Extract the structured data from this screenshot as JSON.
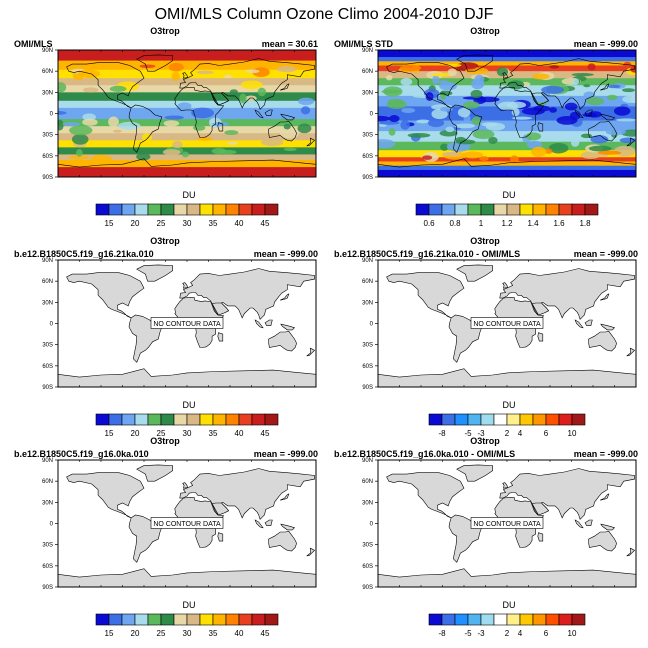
{
  "figure": {
    "title": "OMI/MLS Column Ozone Climo 2004-2010 DJF"
  },
  "lat_ticks": [
    "90N",
    "60N",
    "30N",
    "0",
    "30S",
    "60S",
    "90S"
  ],
  "panels": [
    {
      "id": "obs",
      "title": "O3trop",
      "left_label": "OMI/MLS",
      "right_label": "mean =  30.61",
      "units": "DU",
      "has_data": true,
      "nodata_label": "",
      "colorbar": "abs"
    },
    {
      "id": "obs-std",
      "title": "O3trop",
      "left_label": "OMI/MLS STD",
      "right_label": "mean = -999.00",
      "units": "DU",
      "has_data": true,
      "nodata_label": "",
      "colorbar": "std"
    },
    {
      "id": "model1",
      "title": "O3trop",
      "left_label": "b.e12.B1850C5.f19_g16.21ka.010",
      "right_label": "mean = -999.00",
      "units": "DU",
      "has_data": false,
      "nodata_label": "NO CONTOUR DATA",
      "colorbar": "abs"
    },
    {
      "id": "model1-diff",
      "title": "O3trop",
      "left_label": "b.e12.B1850C5.f19_g16.21ka.010 - OMI/MLS",
      "right_label": "mean = -999.00",
      "units": "DU",
      "has_data": false,
      "nodata_label": "NO CONTOUR DATA",
      "colorbar": "diff"
    },
    {
      "id": "model2",
      "title": "O3trop",
      "left_label": "b.e12.B1850C5.f19_g16.0ka.010",
      "right_label": "mean = -999.00",
      "units": "DU",
      "has_data": false,
      "nodata_label": "NO CONTOUR DATA",
      "colorbar": "abs"
    },
    {
      "id": "model2-diff",
      "title": "O3trop",
      "left_label": "b.e12.B1850C5.f19_g16.0ka.010 - OMI/MLS",
      "right_label": "mean = -999.00",
      "units": "DU",
      "has_data": false,
      "nodata_label": "NO CONTOUR DATA",
      "colorbar": "diff"
    }
  ],
  "colorbars": {
    "abs": {
      "colors": [
        "#0a0ad2",
        "#3c6fe6",
        "#6ea6f0",
        "#a8dcec",
        "#5cb85c",
        "#2e8b4a",
        "#e8d8a8",
        "#d8b884",
        "#ffe000",
        "#ffb400",
        "#ff8200",
        "#e8401e",
        "#c81e1e",
        "#a01818"
      ],
      "labels": [
        "15",
        "20",
        "25",
        "30",
        "35",
        "40",
        "45"
      ],
      "label_after_box": [
        1,
        3,
        5,
        7,
        9,
        11,
        13
      ]
    },
    "std": {
      "colors": [
        "#0a0ad2",
        "#3c6fe6",
        "#6ea6f0",
        "#a8dcec",
        "#5cb85c",
        "#2e8b4a",
        "#e8d8a8",
        "#d8b884",
        "#ffe000",
        "#ffb400",
        "#ff8200",
        "#e8401e",
        "#c81e1e",
        "#a01818"
      ],
      "labels": [
        "0.6",
        "0.8",
        "1",
        "1.2",
        "1.4",
        "1.6",
        "1.8"
      ],
      "label_after_box": [
        1,
        3,
        5,
        7,
        9,
        11,
        13
      ]
    },
    "diff": {
      "colors": [
        "#0a0ad2",
        "#3c6fe6",
        "#1e90ff",
        "#50b4f0",
        "#a0dcf0",
        "#ffffff",
        "#fff08c",
        "#ffc800",
        "#ff9600",
        "#ff5000",
        "#dc1e1e",
        "#a01818"
      ],
      "labels": [
        "-8",
        "-5",
        "-3",
        "2",
        "4",
        "6",
        "10"
      ],
      "label_after_box": [
        1,
        3,
        4,
        6,
        7,
        9,
        11
      ]
    }
  },
  "chart_data": {
    "type": "heatmap",
    "title": "OMI/MLS Column Ozone Climo 2004-2010 DJF",
    "variable": "O3trop",
    "units": "DU",
    "y_ticks": [
      "90N",
      "60N",
      "30N",
      "0",
      "30S",
      "60S",
      "90S"
    ],
    "panels": [
      {
        "label": "OMI/MLS",
        "mean": 30.61,
        "levels": [
          15,
          20,
          25,
          30,
          35,
          40,
          45
        ],
        "zonal_pattern_DU": {
          "lat": [
            90,
            70,
            60,
            45,
            30,
            15,
            0,
            -15,
            -30,
            -45,
            -60,
            -75,
            -90
          ],
          "value": [
            45,
            40,
            38,
            35,
            32,
            27,
            22,
            25,
            30,
            34,
            33,
            38,
            45
          ]
        }
      },
      {
        "label": "OMI/MLS STD",
        "mean": -999.0,
        "levels": [
          0.6,
          0.8,
          1,
          1.2,
          1.4,
          1.6,
          1.8
        ]
      },
      {
        "label": "b.e12.B1850C5.f19_g16.21ka.010",
        "mean": -999.0,
        "note": "NO CONTOUR DATA"
      },
      {
        "label": "b.e12.B1850C5.f19_g16.21ka.010 - OMI/MLS",
        "mean": -999.0,
        "note": "NO CONTOUR DATA"
      },
      {
        "label": "b.e12.B1850C5.f19_g16.0ka.010",
        "mean": -999.0,
        "note": "NO CONTOUR DATA"
      },
      {
        "label": "b.e12.B1850C5.f19_g16.0ka.010 - OMI/MLS",
        "mean": -999.0,
        "note": "NO CONTOUR DATA"
      }
    ]
  }
}
